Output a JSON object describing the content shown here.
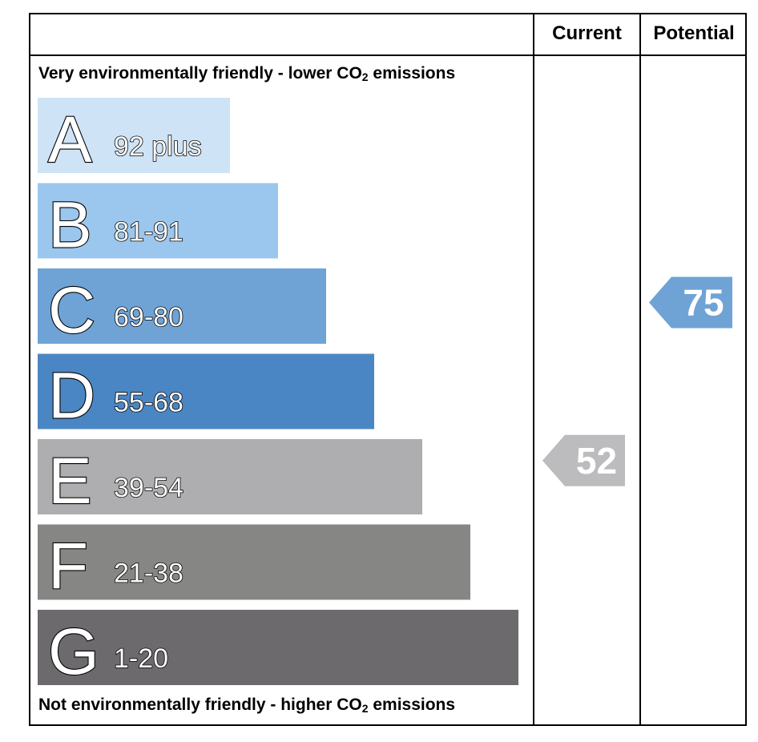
{
  "header": {
    "current_label": "Current",
    "potential_label": "Potential"
  },
  "captions": {
    "top_prefix": "Very environmentally friendly - lower CO",
    "top_sub": "2",
    "top_suffix": " emissions",
    "bottom_prefix": "Not environmentally friendly - higher CO",
    "bottom_sub": "2",
    "bottom_suffix": " emissions"
  },
  "chart_data": {
    "type": "bar",
    "categories": [
      "A",
      "B",
      "C",
      "D",
      "E",
      "F",
      "G"
    ],
    "ranges": [
      "92 plus",
      "81-91",
      "69-80",
      "55-68",
      "39-54",
      "21-38",
      "1-20"
    ],
    "colors": [
      "#cfe3f6",
      "#9bc7ee",
      "#6fa3d6",
      "#4b86c4",
      "#aeadaf",
      "#868785",
      "#6c6a6d"
    ],
    "current": {
      "value": 52,
      "band": "E",
      "color": "#bcbbbd"
    },
    "potential": {
      "value": 75,
      "band": "C",
      "color": "#6fa3d6"
    }
  }
}
